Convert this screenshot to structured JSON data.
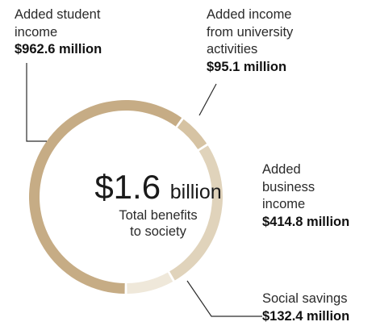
{
  "chart_data": {
    "type": "pie",
    "variant": "donut",
    "slices": [
      {
        "label_lines": [
          "Added student",
          "income"
        ],
        "value": 962.6,
        "value_text": "$962.6 million",
        "color": "#c6ac85"
      },
      {
        "label_lines": [
          "Added income",
          "from university",
          "activities"
        ],
        "value": 95.1,
        "value_text": "$95.1 million",
        "color": "#d6c3a3"
      },
      {
        "label_lines": [
          "Added",
          "business",
          "income"
        ],
        "value": 414.8,
        "value_text": "$414.8 million",
        "color": "#e0d3bb"
      },
      {
        "label_lines": [
          "Social savings"
        ],
        "value": 132.4,
        "value_text": "$132.4 million",
        "color": "#efe8da"
      }
    ],
    "center": {
      "value": "$1.6",
      "unit": "billion",
      "caption_lines": [
        "Total benefits",
        "to society"
      ]
    },
    "start_angle_deg": 180,
    "direction": "clockwise",
    "line_color": "#2b2b2b"
  }
}
